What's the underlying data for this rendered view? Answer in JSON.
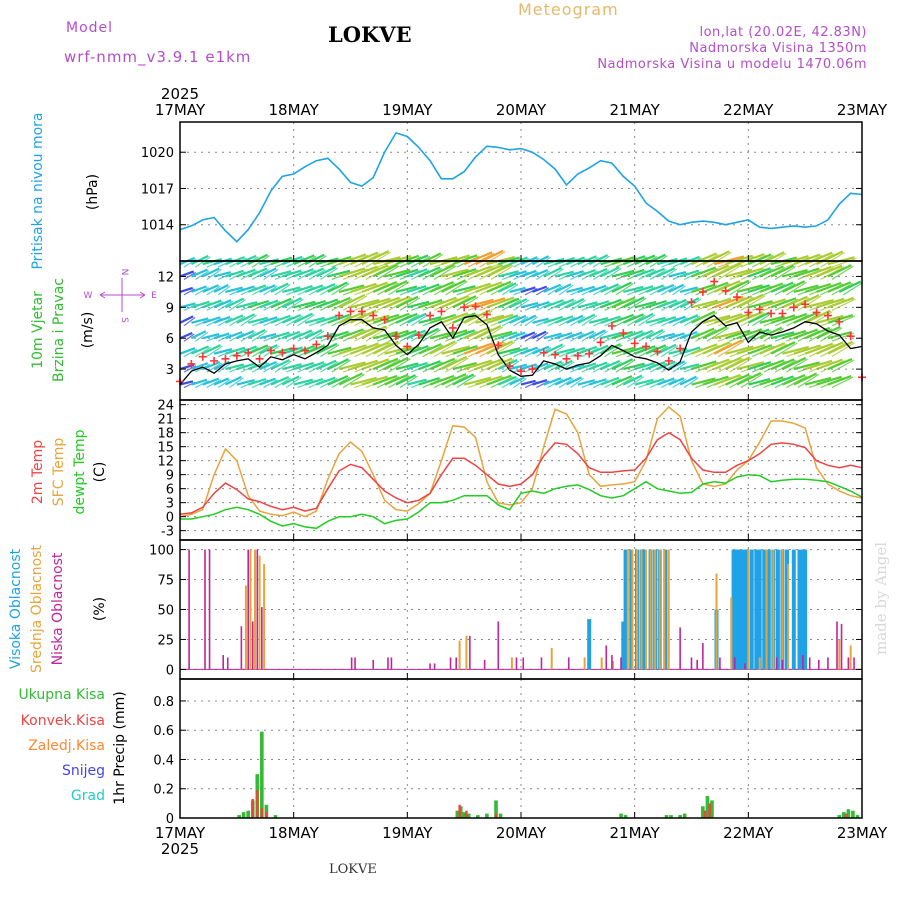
{
  "header": {
    "model_label": "Model",
    "model_name": "wrf-nmm_v3.9.1  e1km",
    "station": "LOKVE",
    "title": "Meteogram",
    "lonlat": "lon,lat (20.02E, 42.83N)",
    "elevation": "Nadmorska Visina 1350m",
    "model_elevation": "Nadmorska Visina u modelu 1470.06m",
    "credit": "made by Angel",
    "footer_station": "LOKVE"
  },
  "colors": {
    "pressure": "#1fa3e6",
    "wind_speed_line": "#000000",
    "gust_marker": "#ff3333",
    "t2m": "#ee4444",
    "sfc_temp": "#e6a53c",
    "dewpt": "#22cc22",
    "cloud_high": "#1fa3e6",
    "cloud_mid": "#e6a53c",
    "cloud_low": "#c0259a",
    "rain_total": "#33bb33",
    "rain_conv": "#ee4444",
    "freezing_rain": "#ff8833",
    "snow": "#4444ee",
    "graupel": "#22cccc",
    "label_purple": "#b44ec8",
    "title_orange": "#e8b86a"
  },
  "chart_data": [
    {
      "type": "line",
      "name": "pressure",
      "ylabel_side": "Pritisak na nivou mora",
      "ylabel": "(hPa)",
      "yticks": [
        1014,
        1017,
        1020
      ],
      "ylim": [
        1011,
        1022.5
      ],
      "grid": true,
      "x_days": [
        0,
        0.1,
        0.2,
        0.3,
        0.4,
        0.5,
        0.6,
        0.7,
        0.8,
        0.9,
        1.0,
        1.1,
        1.2,
        1.3,
        1.4,
        1.5,
        1.6,
        1.7,
        1.8,
        1.9,
        2.0,
        2.1,
        2.2,
        2.3,
        2.4,
        2.5,
        2.6,
        2.7,
        2.8,
        2.9,
        3.0,
        3.1,
        3.2,
        3.3,
        3.4,
        3.5,
        3.6,
        3.7,
        3.8,
        3.9,
        4.0,
        4.1,
        4.2,
        4.3,
        4.4,
        4.5,
        4.6,
        4.7,
        4.8,
        4.9,
        5.0,
        5.1,
        5.2,
        5.3,
        5.4,
        5.5,
        5.6,
        5.7,
        5.8,
        5.9,
        6.0
      ],
      "values": [
        1013.6,
        1013.9,
        1014.4,
        1014.6,
        1013.5,
        1012.6,
        1013.6,
        1015.0,
        1016.8,
        1018.0,
        1018.2,
        1018.8,
        1019.3,
        1019.5,
        1018.6,
        1017.5,
        1017.2,
        1017.9,
        1020.0,
        1021.6,
        1021.3,
        1020.4,
        1019.3,
        1017.8,
        1017.8,
        1018.4,
        1019.6,
        1020.5,
        1020.4,
        1020.2,
        1020.3,
        1020.0,
        1019.4,
        1018.6,
        1017.3,
        1018.2,
        1018.7,
        1019.3,
        1019.1,
        1018.0,
        1017.2,
        1015.8,
        1015.1,
        1014.3,
        1014.0,
        1014.2,
        1014.3,
        1014.2,
        1014.0,
        1014.2,
        1014.4,
        1013.8,
        1013.7,
        1013.8,
        1013.9,
        1013.8,
        1013.9,
        1014.4,
        1015.7,
        1016.6,
        1016.5
      ]
    },
    {
      "type": "line",
      "name": "wind",
      "ylabel_side": "10m Vjetar Brzina i Pravac",
      "ylabel": "(m/s)",
      "compass": "N",
      "compass_w": "W",
      "compass_e": "E",
      "compass_s": "S",
      "yticks": [
        3,
        6,
        9,
        12
      ],
      "ylim": [
        0,
        13.5
      ],
      "grid": true,
      "x_days": [
        0,
        0.1,
        0.2,
        0.3,
        0.4,
        0.5,
        0.6,
        0.7,
        0.8,
        0.9,
        1.0,
        1.1,
        1.2,
        1.3,
        1.4,
        1.5,
        1.6,
        1.7,
        1.8,
        1.9,
        2.0,
        2.1,
        2.2,
        2.3,
        2.4,
        2.5,
        2.6,
        2.7,
        2.8,
        2.9,
        3.0,
        3.1,
        3.2,
        3.3,
        3.4,
        3.5,
        3.6,
        3.7,
        3.8,
        3.9,
        4.0,
        4.1,
        4.2,
        4.3,
        4.4,
        4.5,
        4.6,
        4.7,
        4.8,
        4.9,
        5.0,
        5.1,
        5.2,
        5.3,
        5.4,
        5.5,
        5.6,
        5.7,
        5.8,
        5.9,
        6.0
      ],
      "speed": [
        1.5,
        2.8,
        3.2,
        2.6,
        3.5,
        3.8,
        4.0,
        3.2,
        4.2,
        3.9,
        4.4,
        4.0,
        4.6,
        5.3,
        7.2,
        7.8,
        7.8,
        7.0,
        6.8,
        5.3,
        4.4,
        5.4,
        7.0,
        7.6,
        6.0,
        8.0,
        8.2,
        7.3,
        4.4,
        2.9,
        2.3,
        2.4,
        3.8,
        3.5,
        3.0,
        3.4,
        3.6,
        4.3,
        5.3,
        4.8,
        4.2,
        4.0,
        3.6,
        2.9,
        3.7,
        6.6,
        7.6,
        8.2,
        7.2,
        7.5,
        5.6,
        6.6,
        6.3,
        6.6,
        7.0,
        7.6,
        7.4,
        6.7,
        6.3,
        5.0,
        5.2
      ],
      "gust": [
        1.8,
        3.5,
        4.2,
        3.8,
        4.0,
        4.3,
        4.6,
        4.0,
        4.8,
        4.6,
        5.0,
        4.8,
        5.4,
        6.2,
        8.2,
        8.6,
        8.6,
        8.2,
        7.8,
        6.2,
        5.2,
        6.3,
        8.2,
        8.6,
        7.0,
        9.0,
        9.1,
        8.3,
        5.3,
        3.3,
        2.8,
        3.0,
        4.6,
        4.4,
        4.0,
        4.3,
        4.5,
        5.6,
        7.2,
        6.5,
        5.5,
        5.2,
        4.7,
        3.8,
        5.0,
        9.5,
        10.5,
        11.5,
        10.6,
        10.0,
        8.5,
        8.8,
        8.4,
        8.4,
        9.0,
        9.3,
        8.5,
        8.2,
        7.6,
        6.2,
        2.2
      ],
      "arrow_levels": [
        1.5,
        3.0,
        4.5,
        6.0,
        7.5,
        9.0,
        10.5,
        12.0,
        13.2
      ]
    },
    {
      "type": "line",
      "name": "temperature",
      "labels": [
        "2m Temp",
        "SFC Temp",
        "dewpt Temp"
      ],
      "ylabel": "(C)",
      "yticks": [
        -3,
        0,
        3,
        6,
        9,
        12,
        15,
        18,
        21,
        24
      ],
      "ylim": [
        -5,
        25
      ],
      "grid": true,
      "x_days": [
        0,
        0.1,
        0.2,
        0.3,
        0.4,
        0.5,
        0.6,
        0.7,
        0.8,
        0.9,
        1.0,
        1.1,
        1.2,
        1.3,
        1.4,
        1.5,
        1.6,
        1.7,
        1.8,
        1.9,
        2.0,
        2.1,
        2.2,
        2.3,
        2.4,
        2.5,
        2.6,
        2.7,
        2.8,
        2.9,
        3.0,
        3.1,
        3.2,
        3.3,
        3.4,
        3.5,
        3.6,
        3.7,
        3.8,
        3.9,
        4.0,
        4.1,
        4.2,
        4.3,
        4.4,
        4.5,
        4.6,
        4.7,
        4.8,
        4.9,
        5.0,
        5.1,
        5.2,
        5.3,
        5.4,
        5.5,
        5.6,
        5.7,
        5.8,
        5.9,
        6.0
      ],
      "t2m": [
        0.5,
        0.8,
        2.0,
        5.0,
        7.2,
        5.8,
        3.8,
        3.2,
        2.2,
        1.5,
        2.0,
        1.2,
        1.8,
        6.0,
        9.8,
        11.2,
        10.5,
        8.0,
        5.5,
        4.0,
        3.0,
        3.5,
        5.0,
        9.0,
        12.5,
        12.5,
        11.0,
        9.0,
        7.0,
        6.5,
        7.0,
        9.0,
        13.0,
        15.8,
        15.5,
        13.5,
        10.5,
        9.5,
        9.5,
        9.8,
        10.0,
        12.5,
        16.5,
        18.0,
        16.5,
        12.5,
        10.0,
        9.5,
        9.5,
        11.0,
        12.0,
        13.5,
        15.5,
        15.8,
        15.5,
        14.8,
        12.0,
        11.0,
        10.5,
        11.0,
        10.5
      ],
      "sfc": [
        0.0,
        0.5,
        1.5,
        9.0,
        14.5,
        12.0,
        4.5,
        1.2,
        0.5,
        0.2,
        1.0,
        0.0,
        1.2,
        8.0,
        13.5,
        16.0,
        14.0,
        9.0,
        3.5,
        1.5,
        1.2,
        2.8,
        5.0,
        12.0,
        19.5,
        19.2,
        17.0,
        7.5,
        3.0,
        2.5,
        3.0,
        6.0,
        15.0,
        23.0,
        22.0,
        18.0,
        9.0,
        6.5,
        6.8,
        7.0,
        7.5,
        12.0,
        21.0,
        23.5,
        21.5,
        12.0,
        7.0,
        6.5,
        7.0,
        10.0,
        12.0,
        16.0,
        20.5,
        20.5,
        20.0,
        19.0,
        10.5,
        7.0,
        5.5,
        4.5,
        4.0
      ],
      "dewpt": [
        -0.5,
        -0.5,
        0.0,
        0.5,
        1.5,
        2.0,
        1.5,
        0.5,
        -1.0,
        -2.0,
        -1.5,
        -2.2,
        -2.5,
        -1.0,
        0.0,
        0.0,
        0.5,
        0.0,
        -1.5,
        -0.8,
        -0.5,
        1.0,
        3.0,
        3.0,
        3.5,
        4.5,
        4.5,
        4.5,
        2.5,
        1.5,
        5.0,
        5.5,
        5.0,
        6.0,
        6.5,
        6.8,
        5.8,
        4.5,
        4.0,
        4.5,
        6.0,
        7.5,
        6.0,
        5.5,
        5.0,
        5.2,
        7.0,
        7.5,
        7.2,
        8.5,
        9.0,
        8.8,
        7.5,
        7.8,
        8.0,
        8.0,
        7.8,
        7.5,
        6.5,
        5.5,
        4.2
      ]
    },
    {
      "type": "bar",
      "name": "cloud cover",
      "labels": [
        "Visoka Oblacnost",
        "Srednja Oblacnost",
        "Niska Oblacnost"
      ],
      "ylabel": "(%)",
      "yticks": [
        0,
        25,
        50,
        75,
        100
      ],
      "ylim": [
        -8,
        108
      ],
      "grid": true,
      "high": [
        [
          3.92,
          100
        ],
        [
          3.97,
          100
        ],
        [
          4.02,
          100
        ],
        [
          4.06,
          100
        ],
        [
          4.09,
          100
        ],
        [
          4.14,
          100
        ],
        [
          4.18,
          100
        ],
        [
          4.22,
          100
        ],
        [
          4.27,
          100
        ],
        [
          3.6,
          42
        ],
        [
          3.9,
          40
        ],
        [
          4.72,
          50
        ],
        [
          4.87,
          100
        ],
        [
          4.9,
          100
        ],
        [
          4.93,
          100
        ],
        [
          4.96,
          100
        ],
        [
          4.99,
          100
        ],
        [
          5.03,
          100
        ],
        [
          5.07,
          100
        ],
        [
          5.1,
          100
        ],
        [
          5.14,
          100
        ],
        [
          5.18,
          100
        ],
        [
          5.22,
          100
        ],
        [
          5.26,
          100
        ],
        [
          5.3,
          100
        ],
        [
          5.34,
          100
        ],
        [
          5.4,
          100
        ],
        [
          5.45,
          100
        ],
        [
          5.48,
          100
        ],
        [
          5.5,
          100
        ]
      ],
      "mid": [
        [
          0.58,
          70
        ],
        [
          0.62,
          100
        ],
        [
          0.66,
          100
        ],
        [
          0.7,
          95
        ],
        [
          0.74,
          88
        ],
        [
          2.46,
          24
        ],
        [
          2.52,
          28
        ],
        [
          2.92,
          10
        ],
        [
          3.27,
          18
        ],
        [
          3.71,
          10
        ],
        [
          3.81,
          7
        ],
        [
          3.94,
          100
        ],
        [
          3.98,
          100
        ],
        [
          4.02,
          100
        ],
        [
          4.06,
          100
        ],
        [
          4.1,
          100
        ],
        [
          4.14,
          100
        ],
        [
          4.18,
          100
        ],
        [
          4.22,
          100
        ],
        [
          4.26,
          100
        ],
        [
          4.3,
          100
        ],
        [
          4.72,
          80
        ],
        [
          4.85,
          60
        ],
        [
          5.0,
          100
        ],
        [
          5.1,
          10
        ],
        [
          5.16,
          100
        ],
        [
          5.22,
          100
        ],
        [
          5.3,
          100
        ],
        [
          5.35,
          88
        ],
        [
          5.8,
          25
        ],
        [
          5.9,
          20
        ],
        [
          3.56,
          10
        ]
      ],
      "low": [
        [
          0.08,
          100
        ],
        [
          0.22,
          100
        ],
        [
          0.26,
          100
        ],
        [
          0.38,
          12
        ],
        [
          0.42,
          10
        ],
        [
          0.54,
          36
        ],
        [
          0.6,
          100
        ],
        [
          0.64,
          40
        ],
        [
          0.68,
          100
        ],
        [
          0.72,
          52
        ],
        [
          1.51,
          10
        ],
        [
          1.54,
          10
        ],
        [
          1.7,
          8
        ],
        [
          1.83,
          10
        ],
        [
          1.86,
          10
        ],
        [
          2.2,
          5
        ],
        [
          2.24,
          5
        ],
        [
          2.38,
          10
        ],
        [
          2.43,
          10
        ],
        [
          2.55,
          28
        ],
        [
          2.68,
          8
        ],
        [
          2.8,
          40
        ],
        [
          2.96,
          10
        ],
        [
          3.02,
          10
        ],
        [
          3.18,
          10
        ],
        [
          3.42,
          10
        ],
        [
          3.75,
          20
        ],
        [
          3.8,
          12
        ],
        [
          3.88,
          10
        ],
        [
          4.4,
          35
        ],
        [
          4.5,
          10
        ],
        [
          4.55,
          8
        ],
        [
          4.6,
          22
        ],
        [
          4.75,
          10
        ],
        [
          4.88,
          10
        ],
        [
          5.25,
          10
        ],
        [
          5.3,
          8
        ],
        [
          5.48,
          12
        ],
        [
          5.54,
          10
        ],
        [
          5.62,
          8
        ],
        [
          5.7,
          10
        ],
        [
          5.78,
          40
        ],
        [
          5.82,
          38
        ],
        [
          5.88,
          10
        ],
        [
          5.93,
          10
        ],
        [
          4.97,
          5
        ]
      ]
    },
    {
      "type": "bar",
      "name": "precipitation",
      "labels": [
        "Ukupna Kisa",
        "Konvek.Kisa",
        "Zaledj.Kisa",
        "Snijeg",
        "Grad"
      ],
      "ylabel": "1hr Precip (mm)",
      "yticks": [
        0,
        0.2,
        0.4,
        0.6,
        0.8
      ],
      "ylim": [
        0,
        0.95
      ],
      "grid": true,
      "xtick_labels": [
        "17MAY",
        "18MAY",
        "19MAY",
        "20MAY",
        "21MAY",
        "22MAY",
        "23MAY"
      ],
      "year_label": "2025",
      "total": [
        [
          0.52,
          0.02
        ],
        [
          0.56,
          0.04
        ],
        [
          0.6,
          0.05
        ],
        [
          0.64,
          0.12
        ],
        [
          0.68,
          0.3
        ],
        [
          0.72,
          0.59
        ],
        [
          0.76,
          0.09
        ],
        [
          0.84,
          0.02
        ],
        [
          2.44,
          0.05
        ],
        [
          2.47,
          0.08
        ],
        [
          2.5,
          0.04
        ],
        [
          2.54,
          0.03
        ],
        [
          2.62,
          0.02
        ],
        [
          2.7,
          0.03
        ],
        [
          2.78,
          0.12
        ],
        [
          2.82,
          0.03
        ],
        [
          3.88,
          0.03
        ],
        [
          3.92,
          0.02
        ],
        [
          4.28,
          0.02
        ],
        [
          4.32,
          0.02
        ],
        [
          4.4,
          0.02
        ],
        [
          4.44,
          0.03
        ],
        [
          4.6,
          0.08
        ],
        [
          4.64,
          0.15
        ],
        [
          4.68,
          0.12
        ],
        [
          5.8,
          0.02
        ],
        [
          5.84,
          0.04
        ],
        [
          5.88,
          0.06
        ],
        [
          5.92,
          0.05
        ],
        [
          5.96,
          0.02
        ]
      ],
      "conv": [
        [
          0.64,
          0.13
        ],
        [
          0.68,
          0.19
        ],
        [
          0.72,
          0.07
        ],
        [
          0.76,
          0.04
        ],
        [
          2.46,
          0.09
        ],
        [
          2.52,
          0.05
        ],
        [
          2.78,
          0.03
        ],
        [
          4.62,
          0.05
        ],
        [
          4.66,
          0.1
        ],
        [
          5.86,
          0.03
        ]
      ]
    }
  ]
}
